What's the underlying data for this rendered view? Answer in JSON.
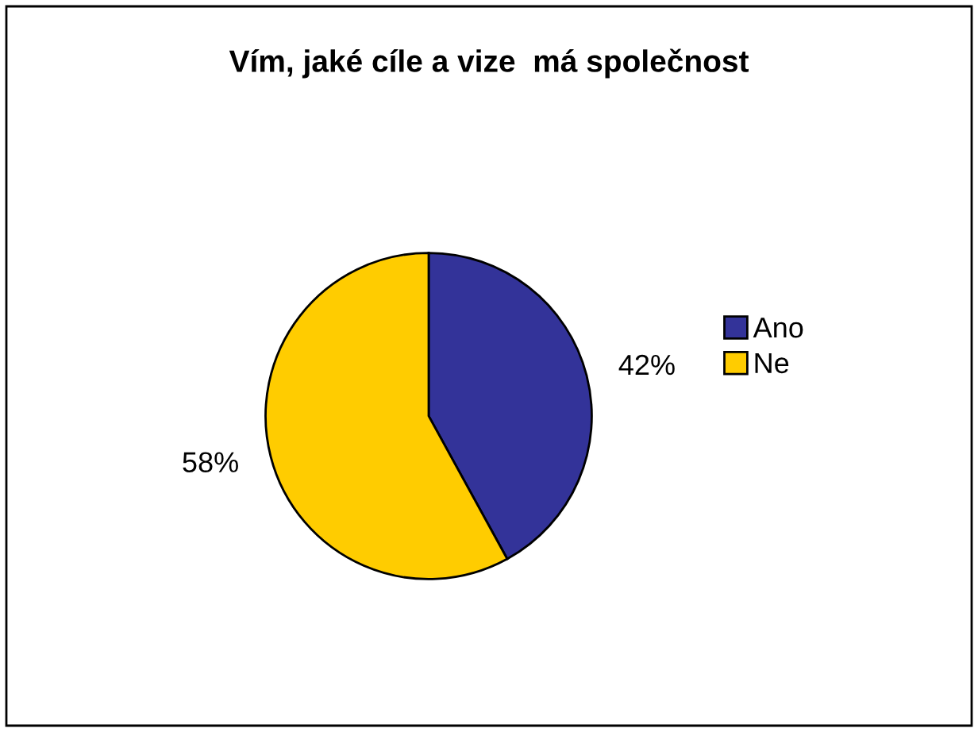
{
  "chart_data": {
    "type": "pie",
    "title": "Vím, jaké cíle a vize  má společnost",
    "categories": [
      "Ano",
      "Ne"
    ],
    "values": [
      42,
      58
    ],
    "colors": [
      "#333399",
      "#ffcc00"
    ],
    "value_labels": [
      "42%",
      "58%"
    ],
    "legend": "right"
  }
}
